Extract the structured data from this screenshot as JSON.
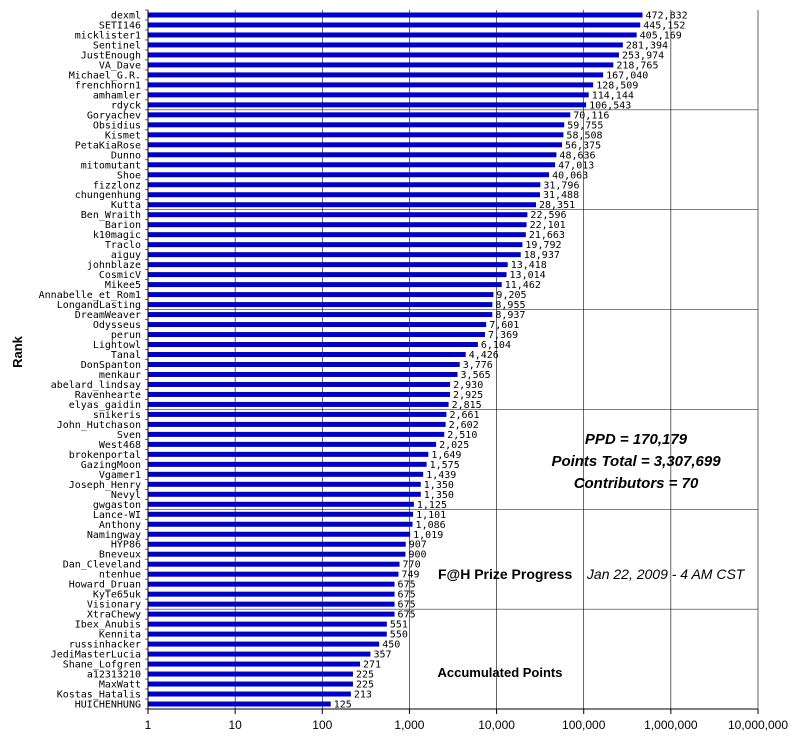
{
  "chart_data": {
    "type": "bar",
    "orientation": "horizontal",
    "xscale": "log",
    "xlim": [
      1,
      10000000
    ],
    "xticks": [
      "1",
      "10",
      "100",
      "1,000",
      "10,000",
      "100,000",
      "1,000,000",
      "10,000,000"
    ],
    "ylabel": "Rank",
    "xlabel": "Accumulated Points",
    "title": "F@H Prize Progress",
    "subtitle": "Jan 22, 2009 - 4 AM CST",
    "bar_color": "#0000CC",
    "grid": "vertical gridlines at decades",
    "categories": [
      "dexml",
      "SETI146",
      "micklister1",
      "Sentinel",
      "JustEnough",
      "VA_Dave",
      "Michael_G.R.",
      "frenchhorn1",
      "amhamler",
      "rdyck",
      "Goryachev",
      "Obsidius",
      "Kismet",
      "PetaKiaRose",
      "Dunno",
      "mitomutant",
      "Shoe",
      "fizzlonz",
      "chungenhung",
      "Kutta",
      "Ben_Wraith",
      "Barion",
      "k10magic",
      "Traclo",
      "aiguy",
      "johnblaze",
      "CosmicV",
      "Mikee5",
      "Annabelle_et_Rom1",
      "LongandLasting",
      "DreamWeaver",
      "Odysseus",
      "perun",
      "Lightowl",
      "Tanal",
      "DonSpanton",
      "menkaur",
      "abelard_lindsay",
      "Ravenhearte",
      "elyas_gaidin",
      "snikeris",
      "John_Hutchason",
      "Sven",
      "West468",
      "brokenportal",
      "GazingMoon",
      "Vgamer1",
      "Joseph_Henry",
      "Nevyl",
      "gwgaston",
      "Lance-WI",
      "Anthony",
      "Namingway",
      "HYP86",
      "Bneveux",
      "Dan_Cleveland",
      "ntenhue",
      "Howard_Druan",
      "KyTe65uk",
      "Visionary",
      "XtraChewy",
      "Ibex_Anubis",
      "Kennita",
      "russinhacker",
      "JediMasterLucia",
      "Shane_Lofgren",
      "a12313210",
      "MaxWatt",
      "Kostas_Hatalis",
      "HUICHENHUNG"
    ],
    "values": [
      472832,
      445152,
      405169,
      281394,
      253974,
      218765,
      167040,
      128509,
      114144,
      106543,
      70116,
      59755,
      58508,
      56375,
      48636,
      47013,
      40063,
      31796,
      31488,
      28351,
      22596,
      22101,
      21663,
      19792,
      18937,
      13418,
      13014,
      11462,
      9205,
      8955,
      8937,
      7601,
      7369,
      6104,
      4426,
      3776,
      3565,
      2930,
      2925,
      2815,
      2661,
      2602,
      2510,
      2025,
      1649,
      1575,
      1439,
      1350,
      1350,
      1125,
      1101,
      1086,
      1019,
      907,
      900,
      770,
      749,
      675,
      675,
      675,
      675,
      551,
      550,
      450,
      357,
      271,
      225,
      225,
      213,
      125
    ],
    "value_labels": [
      "472,832",
      "445,152",
      "405,169",
      "281,394",
      "253,974",
      "218,765",
      "167,040",
      "128,509",
      "114,144",
      "106,543",
      "70,116",
      "59,755",
      "58,508",
      "56,375",
      "48,636",
      "47,013",
      "40,063",
      "31,796",
      "31,488",
      "28,351",
      "22,596",
      "22,101",
      "21,663",
      "19,792",
      "18,937",
      "13,418",
      "13,014",
      "11,462",
      "9,205",
      "8,955",
      "8,937",
      "7,601",
      "7,369",
      "6,104",
      "4,426",
      "3,776",
      "3,565",
      "2,930",
      "2,925",
      "2,815",
      "2,661",
      "2,602",
      "2,510",
      "2,025",
      "1,649",
      "1,575",
      "1,439",
      "1,350",
      "1,350",
      "1,125",
      "1,101",
      "1,086",
      "1,019",
      "907",
      "900",
      "770",
      "749",
      "675",
      "675",
      "675",
      "675",
      "551",
      "550",
      "450",
      "357",
      "271",
      "225",
      "225",
      "213",
      "125"
    ],
    "annotations": {
      "ppd": "PPD = 170,179",
      "points_total": "Points Total = 3,307,699",
      "contributors": "Contributors = 70"
    }
  }
}
